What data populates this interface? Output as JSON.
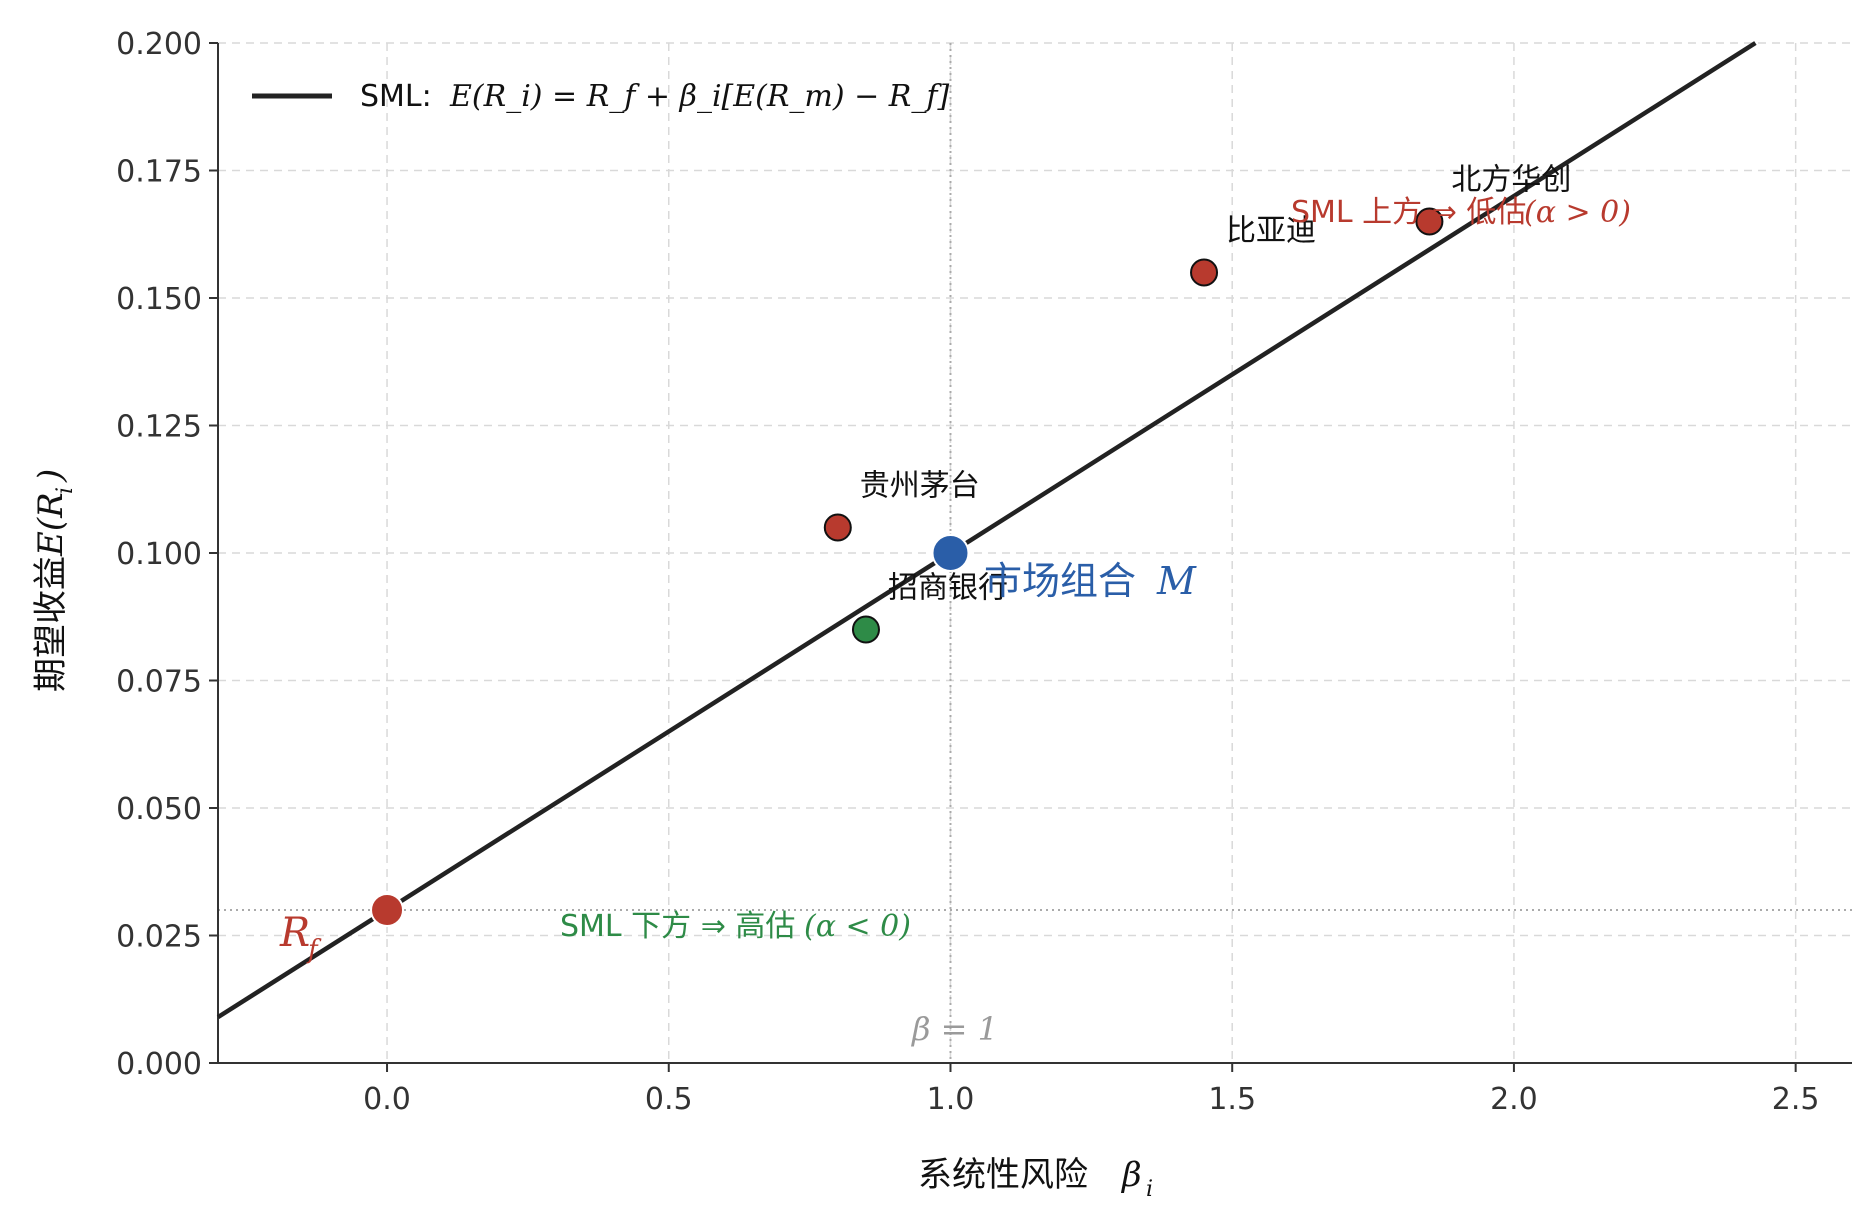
{
  "chart_data": {
    "type": "scatter",
    "xlabel": "系统性风险 β_i",
    "xlabel_text": "系统性风险",
    "xlabel_symbol": "β",
    "xlabel_sub": "i",
    "ylabel": "期望收益 E(R_i)",
    "ylabel_text": "期望收益",
    "ylabel_symbol": "E(R",
    "ylabel_sub": "i",
    "ylabel_close": ")",
    "xlim": [
      -0.3,
      2.6
    ],
    "ylim": [
      0.0,
      0.2
    ],
    "xticks": [
      0.0,
      0.5,
      1.0,
      1.5,
      2.0,
      2.5
    ],
    "xtick_labels": [
      "0.0",
      "0.5",
      "1.0",
      "1.5",
      "2.0",
      "2.5"
    ],
    "yticks": [
      0.0,
      0.025,
      0.05,
      0.075,
      0.1,
      0.125,
      0.15,
      0.175,
      0.2
    ],
    "ytick_labels": [
      "0.000",
      "0.025",
      "0.050",
      "0.075",
      "0.100",
      "0.125",
      "0.150",
      "0.175",
      "0.200"
    ],
    "grid": true,
    "legend": {
      "position": "top-left",
      "label_text": "SML:",
      "label_formula": "E(R_i) = R_f + β_i[E(R_m) − R_f]"
    },
    "sml": {
      "rf": 0.03,
      "market_return": 0.1,
      "color": "#222222"
    },
    "reference_lines": {
      "rf_level": 0.03,
      "beta_one": 1.0,
      "beta_one_label": "β = 1"
    },
    "points": [
      {
        "name": "贵州茅台",
        "x": 0.8,
        "y": 0.105,
        "color": "#b83a2e"
      },
      {
        "name": "招商银行",
        "x": 0.85,
        "y": 0.085,
        "color": "#2e8b47"
      },
      {
        "name": "比亚迪",
        "x": 1.45,
        "y": 0.155,
        "color": "#b83a2e"
      },
      {
        "name": "北方华创",
        "x": 1.85,
        "y": 0.165,
        "color": "#b83a2e"
      }
    ],
    "market_point": {
      "label": "市场组合",
      "symbol": "M",
      "x": 1.0,
      "y": 0.1,
      "color": "#2a5ea8"
    },
    "rf_point": {
      "symbol": "R",
      "sub": "f",
      "x": 0.0,
      "y": 0.03,
      "color": "#b83a2e"
    },
    "annotations": {
      "above": {
        "text": "SML 上方 ⇒ 低估",
        "formula": "(α > 0)",
        "color": "#b83a2e"
      },
      "below": {
        "text": "SML 下方 ⇒ 高估",
        "formula": "(α < 0)",
        "color": "#2e8b47"
      }
    }
  }
}
